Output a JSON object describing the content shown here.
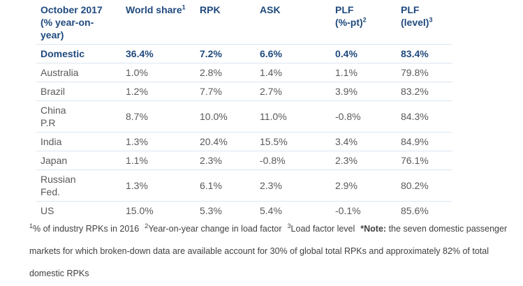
{
  "table": {
    "header": [
      {
        "lines": [
          "October 2017",
          "(% year-on-",
          "year)"
        ]
      },
      {
        "lines": [
          "World share"
        ],
        "sup": "1"
      },
      {
        "lines": [
          "RPK"
        ]
      },
      {
        "lines": [
          "ASK"
        ]
      },
      {
        "lines": [
          "PLF",
          "(%-pt)"
        ],
        "sup": "2"
      },
      {
        "lines": [
          "PLF",
          "(level)"
        ],
        "sup": "3"
      }
    ],
    "rows": [
      {
        "label": [
          "Domestic"
        ],
        "values": [
          "36.4%",
          "7.2%",
          "6.6%",
          "0.4%",
          "83.4%"
        ],
        "bold": true
      },
      {
        "label": [
          "Australia"
        ],
        "values": [
          "1.0%",
          "2.8%",
          "1.4%",
          "1.1%",
          "79.8%"
        ]
      },
      {
        "label": [
          "Brazil"
        ],
        "values": [
          "1.2%",
          "7.7%",
          "2.7%",
          "3.9%",
          "83.2%"
        ]
      },
      {
        "label": [
          "China",
          "P.R"
        ],
        "values": [
          "8.7%",
          "10.0%",
          "11.0%",
          "-0.8%",
          "84.3%"
        ]
      },
      {
        "label": [
          "India"
        ],
        "values": [
          "1.3%",
          "20.4%",
          "15.5%",
          "3.4%",
          "84.9%"
        ]
      },
      {
        "label": [
          "Japan"
        ],
        "values": [
          "1.1%",
          "2.3%",
          "-0.8%",
          "2.3%",
          "76.1%"
        ]
      },
      {
        "label": [
          "Russian",
          "Fed."
        ],
        "values": [
          "1.3%",
          "6.1%",
          "2.3%",
          "2.9%",
          "80.2%"
        ]
      },
      {
        "label": [
          "US"
        ],
        "values": [
          "15.0%",
          "5.3%",
          "5.4%",
          "-0.1%",
          "85.6%"
        ]
      }
    ]
  },
  "footnotes": [
    {
      "mark": "1",
      "text": "% of industry RPKs in 2016"
    },
    {
      "mark": "2",
      "text": "Year-on-year change in load factor"
    },
    {
      "mark": "3",
      "text": "Load factor level"
    },
    {
      "mark": "*Note:",
      "text": "the seven domestic passenger markets for which broken-down data are available account for 30% of global total RPKs and approximately 82% of total domestic RPKs",
      "bold_mark": true
    }
  ]
}
